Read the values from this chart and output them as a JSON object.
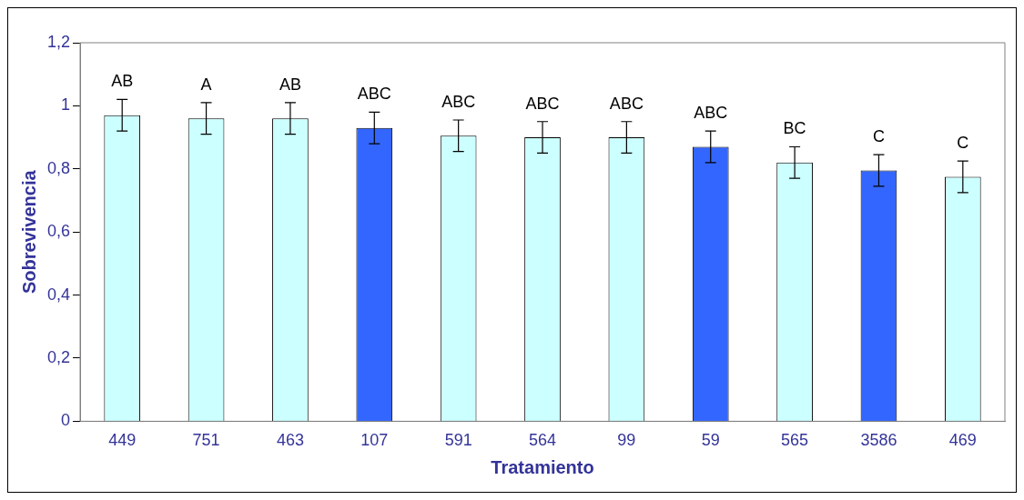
{
  "chart_data": {
    "type": "bar",
    "xlabel": "Tratamiento",
    "ylabel": "Sobrevivencia",
    "categories": [
      "449",
      "751",
      "463",
      "107",
      "591",
      "564",
      "99",
      "59",
      "565",
      "3586",
      "469"
    ],
    "values": [
      0.97,
      0.96,
      0.96,
      0.93,
      0.905,
      0.9,
      0.9,
      0.87,
      0.82,
      0.795,
      0.775
    ],
    "colors": [
      "#ccffff",
      "#ccffff",
      "#ccffff",
      "#3366ff",
      "#ccffff",
      "#ccffff",
      "#ccffff",
      "#3366ff",
      "#ccffff",
      "#3366ff",
      "#ccffff"
    ],
    "errors": [
      0.05,
      0.05,
      0.05,
      0.05,
      0.05,
      0.05,
      0.05,
      0.05,
      0.05,
      0.05,
      0.05
    ],
    "ylim": [
      0,
      1.2
    ],
    "yticks": [
      0,
      {
        "value": 0.2,
        "label": "0,2"
      },
      {
        "value": 0.4,
        "label": "0,4"
      },
      {
        "value": 0.6,
        "label": "0,6"
      },
      {
        "value": 0.8,
        "label": "0,8"
      },
      1,
      {
        "value": 1.2,
        "label": "1,2"
      }
    ],
    "grid": false,
    "legend": false,
    "annotations": [
      {
        "text": "AB",
        "x": "449",
        "y": 1.02
      },
      {
        "text": "A",
        "x": "751",
        "y": 1.01
      },
      {
        "text": "AB",
        "x": "463",
        "y": 1.01
      },
      {
        "text": "ABC",
        "x": "107",
        "y": 0.98
      },
      {
        "text": "ABC",
        "x": "591",
        "y": 0.955
      },
      {
        "text": "ABC",
        "x": "564",
        "y": 0.95
      },
      {
        "text": "ABC",
        "x": "99",
        "y": 0.95
      },
      {
        "text": "ABC",
        "x": "59",
        "y": 0.92
      },
      {
        "text": "BC",
        "x": "565",
        "y": 0.87
      },
      {
        "text": "C",
        "x": "3586",
        "y": 0.845
      },
      {
        "text": "C",
        "x": "469",
        "y": 0.825
      }
    ]
  }
}
